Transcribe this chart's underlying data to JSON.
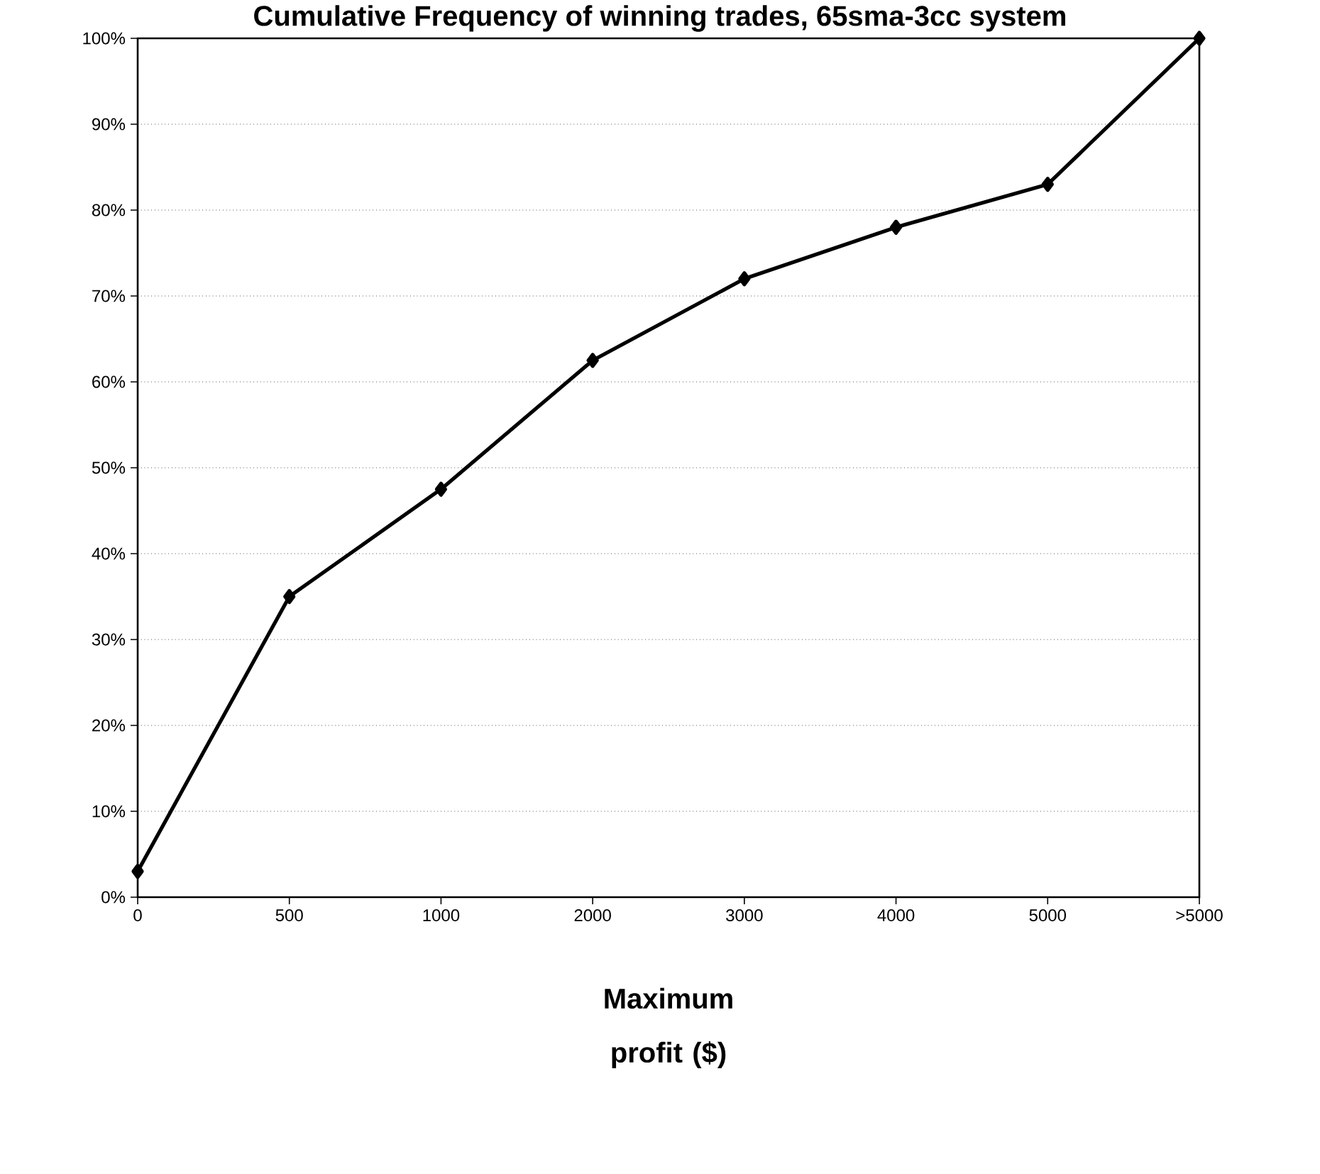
{
  "chart_data": {
    "type": "line",
    "title": "Cumulative Frequency of winning trades, 65sma-3cc system",
    "xlabel": "Maximum profit ($)",
    "categories": [
      "0",
      "500",
      "1000",
      "2000",
      "3000",
      "4000",
      "5000",
      ">5000"
    ],
    "series": [
      {
        "color": "#000000",
        "values": [
          3,
          35,
          47.5,
          62.5,
          72,
          78,
          83,
          100
        ]
      }
    ],
    "ylim": [
      0,
      100
    ],
    "yticks": [
      {
        "value": 0,
        "label": "0%"
      },
      {
        "value": 10,
        "label": "10%"
      },
      {
        "value": 20,
        "label": "20%"
      },
      {
        "value": 30,
        "label": "30%"
      },
      {
        "value": 40,
        "label": "40%"
      },
      {
        "value": 50,
        "label": "50%"
      },
      {
        "value": 60,
        "label": "60%"
      },
      {
        "value": 70,
        "label": "70%"
      },
      {
        "value": 80,
        "label": "80%"
      },
      {
        "value": 90,
        "label": "90%"
      },
      {
        "value": 100,
        "label": "100%"
      }
    ],
    "grid": "y",
    "marker": "diamond",
    "line_style": "solid"
  }
}
